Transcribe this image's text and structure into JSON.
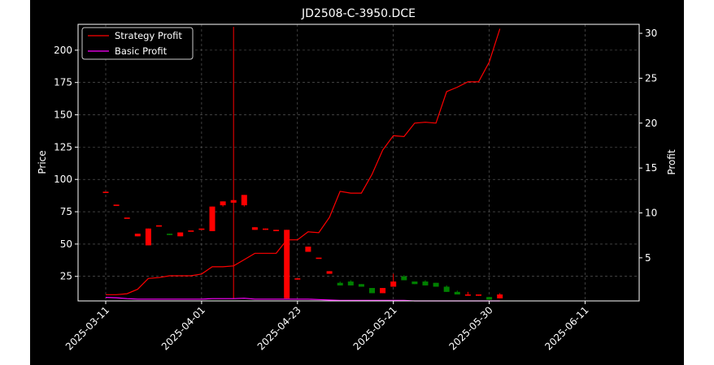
{
  "chart_data": {
    "type": "candlestick_with_lines",
    "title": "JD2508-C-3950.DCE",
    "ylabel_left": "Price",
    "ylabel_right": "Profit",
    "ylim_left": [
      6,
      220
    ],
    "ylim_right": [
      0.2,
      31.0
    ],
    "y_ticks_left": [
      25,
      50,
      75,
      100,
      125,
      150,
      175,
      200
    ],
    "y_ticks_right": [
      5,
      10,
      15,
      20,
      25,
      30
    ],
    "x_tick_labels": [
      {
        "label": "2025-03-11",
        "index": 0
      },
      {
        "label": "2025-04-01",
        "index": 9
      },
      {
        "label": "2025-04-23",
        "index": 18
      },
      {
        "label": "2025-05-21",
        "index": 27
      },
      {
        "label": "2025-05-30",
        "index": 36
      },
      {
        "label": "2025-06-11",
        "index": 45
      }
    ],
    "grid": true,
    "legend_position": "top-left",
    "colors": {
      "up": "#ff0000",
      "down": "#008000",
      "strategy": "#ff0000",
      "basic": "#ff00ff",
      "background": "#000000"
    },
    "legend": [
      {
        "label": "Strategy Profit",
        "color": "#ff0000"
      },
      {
        "label": "Basic Profit",
        "color": "#ff00ff"
      }
    ],
    "candles": [
      {
        "o": 90,
        "h": 90,
        "l": 90,
        "c": 90,
        "dir": "up"
      },
      {
        "o": 80,
        "h": 80,
        "l": 80,
        "c": 80,
        "dir": "up"
      },
      {
        "o": 70,
        "h": 70,
        "l": 70,
        "c": 70,
        "dir": "up"
      },
      {
        "o": 56,
        "h": 58,
        "l": 56,
        "c": 58,
        "dir": "up"
      },
      {
        "o": 49,
        "h": 62,
        "l": 49,
        "c": 62,
        "dir": "up"
      },
      {
        "o": 64,
        "h": 64,
        "l": 64,
        "c": 64,
        "dir": "up"
      },
      {
        "o": 58,
        "h": 58,
        "l": 57,
        "c": 57,
        "dir": "down"
      },
      {
        "o": 56,
        "h": 59,
        "l": 56,
        "c": 59,
        "dir": "up"
      },
      {
        "o": 60,
        "h": 60,
        "l": 60,
        "c": 60,
        "dir": "up"
      },
      {
        "o": 61,
        "h": 62,
        "l": 61,
        "c": 62,
        "dir": "up"
      },
      {
        "o": 60,
        "h": 79,
        "l": 60,
        "c": 79,
        "dir": "up"
      },
      {
        "o": 80,
        "h": 83,
        "l": 79,
        "c": 83,
        "dir": "up"
      },
      {
        "o": 82,
        "h": 218,
        "l": 8,
        "c": 84,
        "dir": "up"
      },
      {
        "o": 80,
        "h": 88,
        "l": 79,
        "c": 88,
        "dir": "up"
      },
      {
        "o": 61,
        "h": 63,
        "l": 61,
        "c": 63,
        "dir": "up"
      },
      {
        "o": 61,
        "h": 62,
        "l": 61,
        "c": 62,
        "dir": "up"
      },
      {
        "o": 60,
        "h": 61,
        "l": 60,
        "c": 61,
        "dir": "up"
      },
      {
        "o": 8,
        "h": 61,
        "l": 8,
        "c": 61,
        "dir": "up"
      },
      {
        "o": 23,
        "h": 23,
        "l": 23,
        "c": 23,
        "dir": "up"
      },
      {
        "o": 44,
        "h": 48,
        "l": 44,
        "c": 48,
        "dir": "up"
      },
      {
        "o": 39,
        "h": 39,
        "l": 39,
        "c": 39,
        "dir": "up"
      },
      {
        "o": 27,
        "h": 29,
        "l": 27,
        "c": 29,
        "dir": "up"
      },
      {
        "o": 20,
        "h": 21,
        "l": 18,
        "c": 18,
        "dir": "down"
      },
      {
        "o": 21,
        "h": 22,
        "l": 18,
        "c": 18,
        "dir": "down"
      },
      {
        "o": 19,
        "h": 19,
        "l": 17,
        "c": 17,
        "dir": "down"
      },
      {
        "o": 16,
        "h": 16,
        "l": 12,
        "c": 12,
        "dir": "down"
      },
      {
        "o": 12,
        "h": 16,
        "l": 12,
        "c": 16,
        "dir": "up"
      },
      {
        "o": 17,
        "h": 27,
        "l": 17,
        "c": 21,
        "dir": "up"
      },
      {
        "o": 25,
        "h": 26,
        "l": 22,
        "c": 22,
        "dir": "down"
      },
      {
        "o": 21,
        "h": 21,
        "l": 19,
        "c": 19,
        "dir": "down"
      },
      {
        "o": 21,
        "h": 22,
        "l": 18,
        "c": 18,
        "dir": "down"
      },
      {
        "o": 20,
        "h": 20,
        "l": 17,
        "c": 17,
        "dir": "down"
      },
      {
        "o": 17,
        "h": 18,
        "l": 13,
        "c": 13,
        "dir": "down"
      },
      {
        "o": 13,
        "h": 14,
        "l": 11,
        "c": 11,
        "dir": "down"
      },
      {
        "o": 10,
        "h": 13,
        "l": 10,
        "c": 11,
        "dir": "up"
      },
      {
        "o": 10,
        "h": 11,
        "l": 10,
        "c": 11,
        "dir": "up"
      },
      {
        "o": 9,
        "h": 9,
        "l": 7,
        "c": 7,
        "dir": "down"
      },
      {
        "o": 8,
        "h": 12,
        "l": 8,
        "c": 11,
        "dir": "up"
      }
    ],
    "series": [
      {
        "name": "Strategy Profit",
        "color": "#ff0000",
        "values": [
          0.9,
          0.9,
          1.0,
          1.5,
          2.7,
          2.8,
          3.0,
          3.0,
          3.0,
          3.2,
          4.0,
          4.0,
          4.1,
          4.8,
          5.5,
          5.5,
          5.5,
          7.0,
          7.0,
          7.9,
          7.8,
          9.5,
          12.4,
          12.2,
          12.2,
          14.3,
          17.0,
          18.6,
          18.5,
          20.0,
          20.1,
          20.0,
          23.5,
          24.0,
          24.6,
          24.6,
          26.8,
          30.5
        ]
      },
      {
        "name": "Basic Profit",
        "color": "#ff00ff",
        "values": [
          0.6,
          0.55,
          0.45,
          0.4,
          0.4,
          0.4,
          0.4,
          0.4,
          0.4,
          0.4,
          0.45,
          0.45,
          0.45,
          0.5,
          0.4,
          0.4,
          0.4,
          0.4,
          0.4,
          0.4,
          0.35,
          0.3,
          0.25,
          0.25,
          0.25,
          0.25,
          0.25,
          0.25,
          0.25,
          0.2,
          0.2,
          0.2,
          0.2,
          0.2,
          0.2,
          0.2,
          0.2,
          0.2
        ]
      }
    ]
  }
}
